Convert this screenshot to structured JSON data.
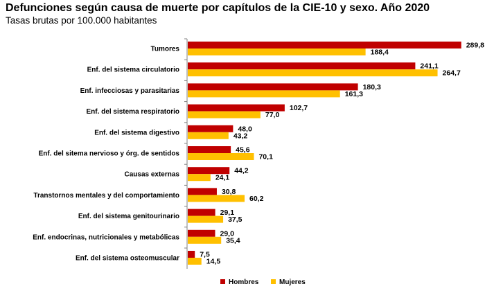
{
  "title": "Defunciones según causa de muerte por capítulos de la CIE-10 y sexo. Año 2020",
  "subtitle": "Tasas brutas por 100.000 habitantes",
  "chart_data": {
    "type": "bar",
    "orientation": "horizontal",
    "title": "Defunciones según causa de muerte por capítulos de la CIE-10 y sexo. Año 2020",
    "subtitle": "Tasas brutas por 100.000 habitantes",
    "xlabel": "",
    "ylabel": "",
    "xlim": [
      0,
      290
    ],
    "grid": false,
    "legend_position": "bottom",
    "categories": [
      "Tumores",
      "Enf. del sistema circulatorio",
      "Enf. infecciosas y parasitarias",
      "Enf. del sistema respiratorio",
      "Enf. del sistema digestivo",
      "Enf. del sitema nervioso y órg. de sentidos",
      "Causas externas",
      "Transtornos mentales y del comportamiento",
      "Enf. del sistema genitourinario",
      "Enf. endocrinas, nutricionales y metabólicas",
      "Enf. del sistema osteomuscular"
    ],
    "series": [
      {
        "name": "Hombres",
        "color": "#c00000",
        "values": [
          289.8,
          241.1,
          180.3,
          102.7,
          48.0,
          45.6,
          44.2,
          30.8,
          29.1,
          29.0,
          7.5
        ],
        "labels": [
          "289,8",
          "241,1",
          "180,3",
          "102,7",
          "48,0",
          "45,6",
          "44,2",
          "30,8",
          "29,1",
          "29,0",
          "7,5"
        ]
      },
      {
        "name": "Mujeres",
        "color": "#ffc000",
        "values": [
          188.4,
          264.7,
          161.3,
          77.0,
          43.2,
          70.1,
          24.1,
          60.2,
          37.5,
          35.4,
          14.5
        ],
        "labels": [
          "188,4",
          "264,7",
          "161,3",
          "77,0",
          "43,2",
          "70,1",
          "24,1",
          "60,2",
          "37,5",
          "35,4",
          "14,5"
        ]
      }
    ]
  }
}
